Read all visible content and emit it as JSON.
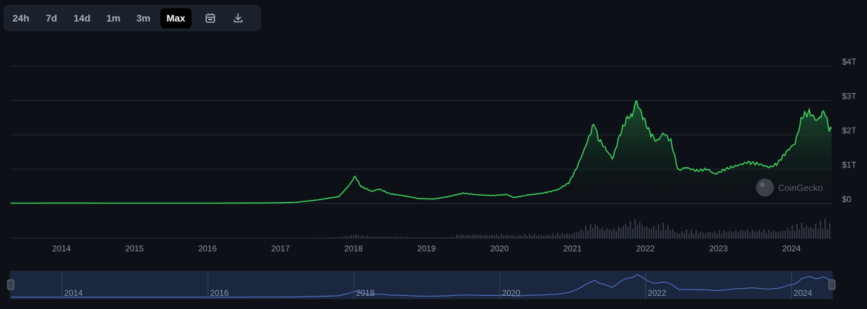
{
  "toolbar": {
    "ranges": [
      "24h",
      "7d",
      "14d",
      "1m",
      "3m",
      "Max"
    ],
    "active": "Max",
    "icons": [
      "calendar-icon",
      "download-icon"
    ]
  },
  "watermark": {
    "text": "CoinGecko"
  },
  "colors": {
    "line": "#3fd160",
    "area_top": "#1f6b34",
    "volume": "#3c4350",
    "navigator_fill": "#1d2a44",
    "navigator_line": "#5577cc",
    "background": "#0d1117"
  },
  "chart_data": {
    "type": "area",
    "title": "",
    "xlabel": "",
    "ylabel": "",
    "y_tick_labels": [
      "$0",
      "$1T",
      "$2T",
      "$3T",
      "$4T"
    ],
    "ylim": [
      0,
      4
    ],
    "y_unit": "trillion USD",
    "x_tick_labels": [
      "2014",
      "2015",
      "2016",
      "2017",
      "2018",
      "2019",
      "2020",
      "2021",
      "2022",
      "2023",
      "2024"
    ],
    "xlim": [
      2013.3,
      2024.55
    ],
    "grid": true,
    "series": [
      {
        "values_x": [
          2013.3,
          2014.0,
          2015.0,
          2016.0,
          2016.8,
          2017.2,
          2017.5,
          2017.8,
          2017.95,
          2018.02,
          2018.1,
          2018.25,
          2018.35,
          2018.5,
          2018.7,
          2018.9,
          2019.1,
          2019.3,
          2019.5,
          2019.7,
          2019.9,
          2020.1,
          2020.2,
          2020.4,
          2020.6,
          2020.8,
          2020.95,
          2021.05,
          2021.15,
          2021.3,
          2021.35,
          2021.45,
          2021.55,
          2021.65,
          2021.75,
          2021.82,
          2021.87,
          2021.95,
          2022.05,
          2022.15,
          2022.25,
          2022.35,
          2022.45,
          2022.55,
          2022.7,
          2022.85,
          2022.95,
          2023.1,
          2023.25,
          2023.4,
          2023.55,
          2023.7,
          2023.8,
          2023.95,
          2024.05,
          2024.15,
          2024.25,
          2024.35,
          2024.45,
          2024.52
        ],
        "values_y": [
          0.01,
          0.012,
          0.01,
          0.01,
          0.015,
          0.03,
          0.1,
          0.2,
          0.55,
          0.8,
          0.5,
          0.35,
          0.42,
          0.28,
          0.22,
          0.14,
          0.13,
          0.2,
          0.3,
          0.25,
          0.23,
          0.26,
          0.17,
          0.25,
          0.3,
          0.4,
          0.6,
          1.0,
          1.5,
          2.35,
          1.9,
          1.6,
          1.3,
          2.0,
          2.5,
          2.55,
          3.0,
          2.6,
          2.1,
          1.8,
          2.05,
          1.8,
          0.95,
          1.05,
          0.95,
          1.0,
          0.85,
          1.0,
          1.1,
          1.2,
          1.15,
          1.05,
          1.15,
          1.55,
          1.75,
          2.55,
          2.65,
          2.4,
          2.7,
          2.15
        ]
      }
    ]
  }
}
